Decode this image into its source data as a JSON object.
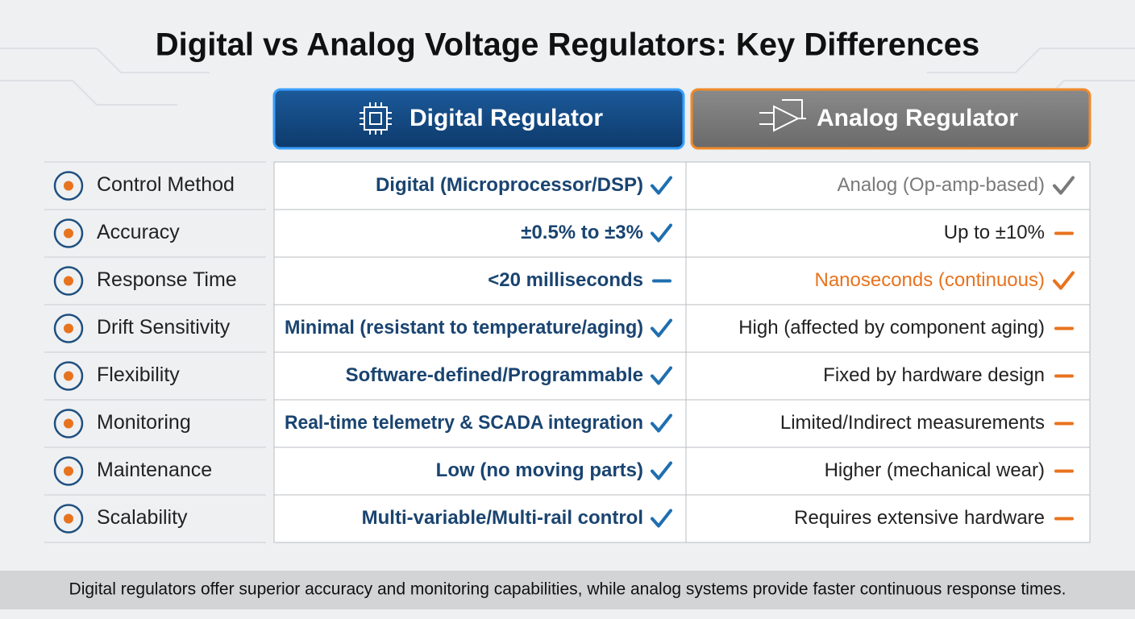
{
  "title": "Digital vs Analog Voltage Regulators: Key Differences",
  "headers": {
    "digital": "Digital Regulator",
    "analog": "Analog Regulator"
  },
  "rows": [
    {
      "label": "Control Method",
      "digital": {
        "text": "Digital (Microprocessor/DSP)",
        "mark": "check",
        "color": "#1a4470"
      },
      "analog": {
        "text": "Analog (Op-amp-based)",
        "mark": "check",
        "color": "#7a7a7a"
      }
    },
    {
      "label": "Accuracy",
      "digital": {
        "text": "±0.5% to ±3%",
        "mark": "check",
        "color": "#1a4470"
      },
      "analog": {
        "text": "Up to ±10%",
        "mark": "dash",
        "color": "#222222"
      }
    },
    {
      "label": "Response Time",
      "digital": {
        "text": "<20 milliseconds",
        "mark": "dash",
        "color": "#1a4470"
      },
      "analog": {
        "text": "Nanoseconds (continuous)",
        "mark": "check",
        "color": "#e8731e"
      }
    },
    {
      "label": "Drift Sensitivity",
      "digital": {
        "text": "Minimal (resistant to temperature/aging)",
        "mark": "check",
        "color": "#1a4470"
      },
      "analog": {
        "text": "High (affected by component aging)",
        "mark": "dash",
        "color": "#222222"
      }
    },
    {
      "label": "Flexibility",
      "digital": {
        "text": "Software-defined/Programmable",
        "mark": "check",
        "color": "#1a4470"
      },
      "analog": {
        "text": "Fixed by hardware design",
        "mark": "dash",
        "color": "#222222"
      }
    },
    {
      "label": "Monitoring",
      "digital": {
        "text": "Real-time telemetry & SCADA integration",
        "mark": "check",
        "color": "#1a4470"
      },
      "analog": {
        "text": "Limited/Indirect measurements",
        "mark": "dash",
        "color": "#222222"
      }
    },
    {
      "label": "Maintenance",
      "digital": {
        "text": "Low (no moving parts)",
        "mark": "check",
        "color": "#1a4470"
      },
      "analog": {
        "text": "Higher (mechanical wear)",
        "mark": "dash",
        "color": "#222222"
      }
    },
    {
      "label": "Scalability",
      "digital": {
        "text": "Multi-variable/Multi-rail control",
        "mark": "check",
        "color": "#1a4470"
      },
      "analog": {
        "text": "Requires extensive hardware",
        "mark": "dash",
        "color": "#222222"
      }
    }
  ],
  "footer": "Digital regulators offer superior accuracy and monitoring capabilities, while analog systems provide faster continuous response times."
}
